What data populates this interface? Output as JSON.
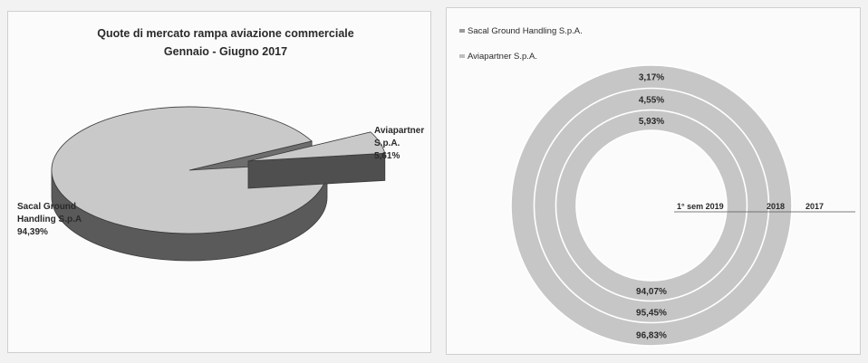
{
  "chart_data": [
    {
      "type": "pie",
      "title": "Quote di mercato rampa aviazione commerciale",
      "subtitle": "Gennaio - Giugno 2017",
      "slices": [
        {
          "name": "Sacal Ground Handling S.p.A.",
          "value": 94.39,
          "label": [
            "Sacal Ground",
            "Handling S.p.A",
            "94,39%"
          ]
        },
        {
          "name": "Aviapartner S.p.A.",
          "value": 5.61,
          "label": [
            "Aviapartner",
            "S.p.A.",
            "5,61%"
          ]
        }
      ],
      "colors": {
        "top": "#c9c9c9",
        "side": "#5a5a5a",
        "edge": "#3a3a3a"
      },
      "style": "3d-exploded"
    },
    {
      "type": "pie",
      "subtype": "doughnut",
      "legend": [
        "Sacal Ground Handling S.p.A.",
        "Aviapartner S.p.A."
      ],
      "legend_position": "top-left",
      "rings": [
        {
          "name": "2017",
          "values": [
            96.83,
            3.17
          ],
          "labels": [
            "96,83%",
            "3,17%"
          ]
        },
        {
          "name": "2018",
          "values": [
            95.45,
            4.55
          ],
          "labels": [
            "95,45%",
            "4,55%"
          ]
        },
        {
          "name": "1° sem 2019",
          "values": [
            94.07,
            5.93
          ],
          "labels": [
            "94,07%",
            "5,93%"
          ]
        }
      ],
      "ring_names_order": [
        "1° sem 2019",
        "2018",
        "2017"
      ],
      "colors": {
        "ring": "#c6c6c6",
        "separator": "#ffffff"
      }
    }
  ]
}
